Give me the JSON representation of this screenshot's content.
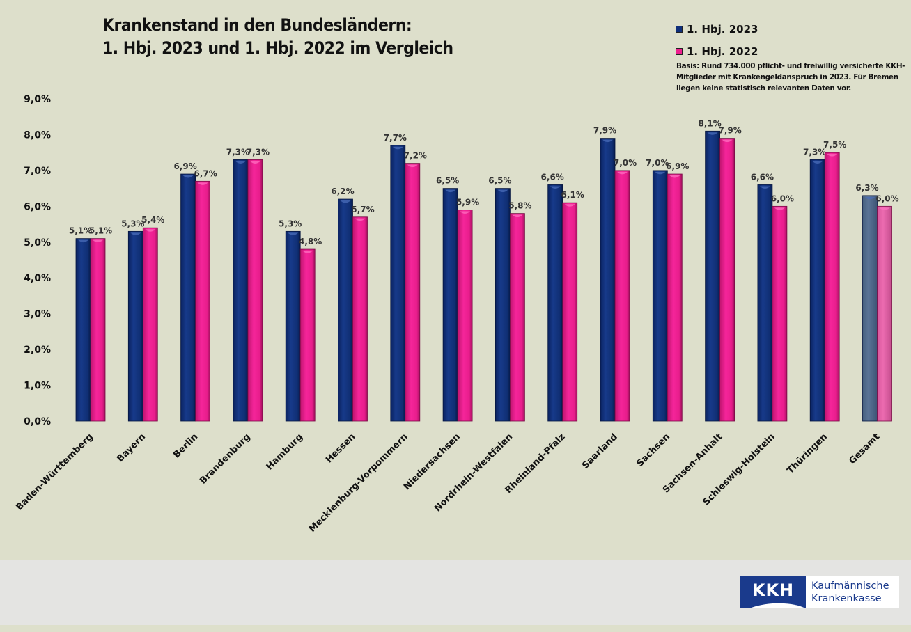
{
  "chart_data": {
    "type": "bar",
    "title": "Krankenstand in den Bundesländern:",
    "subtitle": "1. Hbj. 2023 und 1. Hbj. 2022 im Vergleich",
    "xlabel": "",
    "ylabel": "",
    "ylim": [
      0,
      9
    ],
    "y_ticks": [
      "0,0%",
      "1,0%",
      "2,0%",
      "3,0%",
      "4,0%",
      "5,0%",
      "6,0%",
      "7,0%",
      "8,0%",
      "9,0%"
    ],
    "grid": false,
    "legend_position": "top-right",
    "categories": [
      "Baden-Württemberg",
      "Bayern",
      "Berlin",
      "Brandenburg",
      "Hamburg",
      "Hessen",
      "Mecklenburg-Vorpommern",
      "Niedersachsen",
      "Nordrhein-Westfalen",
      "Rheinland-Pfalz",
      "Saarland",
      "Sachsen",
      "Sachsen-Anhalt",
      "Schleswig-Holstein",
      "Thüringen",
      "Gesamt"
    ],
    "series": [
      {
        "name": "1. Hbj. 2023",
        "color": "#0f2f7a",
        "highlight_color": "#546d8f",
        "values": [
          5.1,
          5.3,
          6.9,
          7.3,
          5.3,
          6.2,
          7.7,
          6.5,
          6.5,
          6.6,
          7.9,
          7.0,
          8.1,
          6.6,
          7.3,
          6.3
        ],
        "labels": [
          "5,1%",
          "5,3%",
          "6,9%",
          "7,3%",
          "5,3%",
          "6,2%",
          "7,7%",
          "6,5%",
          "6,5%",
          "6,6%",
          "7,9%",
          "7,0%",
          "8,1%",
          "6,6%",
          "7,3%",
          "6,3%"
        ]
      },
      {
        "name": "1. Hbj. 2022",
        "color": "#ee1f8f",
        "highlight_color": "#e765aa",
        "values": [
          5.1,
          5.4,
          6.7,
          7.3,
          4.8,
          5.7,
          7.2,
          5.9,
          5.8,
          6.1,
          7.0,
          6.9,
          7.9,
          6.0,
          7.5,
          6.0
        ],
        "labels": [
          "5,1%",
          "5,4%",
          "6,7%",
          "7,3%",
          "4,8%",
          "5,7%",
          "7,2%",
          "5,9%",
          "5,8%",
          "6,1%",
          "7,0%",
          "6,9%",
          "7,9%",
          "6,0%",
          "7,5%",
          "6,0%"
        ]
      }
    ],
    "highlighted_category": "Gesamt",
    "note": "Basis: Rund 734.000 pflicht- und freiwillig versicherte KKH-Mitglieder mit Krankengeldanspruch in 2023. Für Bremen liegen keine statistisch relevanten Daten vor."
  },
  "legend": [
    {
      "label": "1. Hbj. 2023",
      "color": "#0f2f7a"
    },
    {
      "label": "1. Hbj. 2022",
      "color": "#ee1f8f"
    }
  ],
  "footer": {
    "logo_mark": "KKH",
    "logo_line1": "Kaufmännische",
    "logo_line2": "Krankenkasse"
  }
}
